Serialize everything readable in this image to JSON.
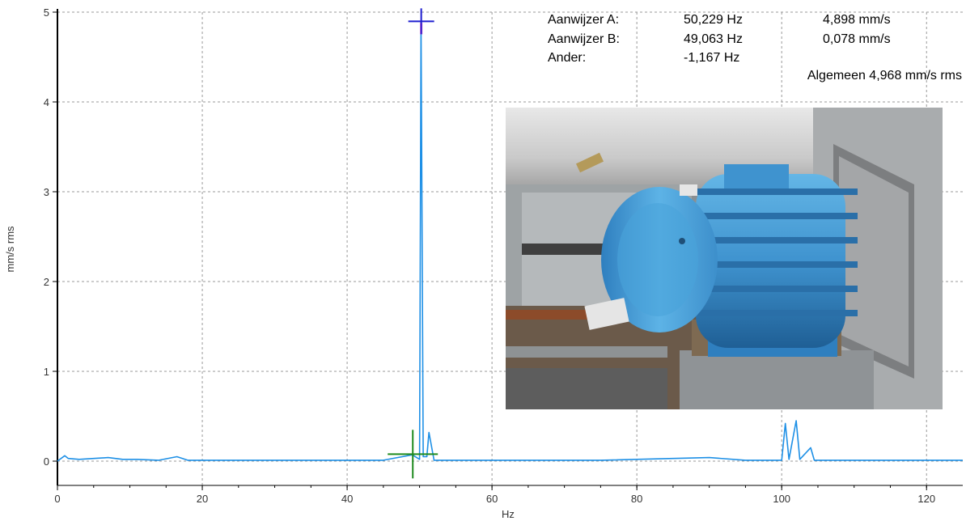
{
  "colors": {
    "spectrum": "#1e90e6",
    "grid": "#9a9a9a",
    "axis": "#000000",
    "cursor_a": "#1f1fd0",
    "cursor_b": "#1e8a1e",
    "peak_highlight": "#ff66cc"
  },
  "cursors": {
    "a": {
      "label": "Aanwijzer A:",
      "freq": "50,229 Hz",
      "amp": "4,898 mm/s"
    },
    "b": {
      "label": "Aanwijzer B:",
      "freq": "49,063 Hz",
      "amp": "0,078 mm/s"
    },
    "delta": {
      "label": "Ander:",
      "freq": "-1,167 Hz"
    },
    "overall": "Algemeen 4,968 mm/s rms"
  },
  "photo": {
    "subject": "electric motor photo",
    "icon": "blue-electric-motor"
  },
  "chart_data": {
    "type": "line",
    "title": "",
    "xlabel": "Hz",
    "ylabel": "mm/s rms",
    "xlim": [
      0,
      125
    ],
    "ylim": [
      -0.3,
      5
    ],
    "x_ticks": [
      "0",
      "20",
      "40",
      "60",
      "80",
      "100",
      "120"
    ],
    "y_ticks": [
      "0",
      "1",
      "2",
      "3",
      "4",
      "5"
    ],
    "grid": true,
    "series": [
      {
        "x": [
          0,
          1,
          1.5,
          3,
          5,
          7,
          9,
          11,
          14,
          16.5,
          18,
          25,
          35,
          45,
          49,
          50,
          50.2,
          50.5,
          51,
          51.3,
          52,
          60,
          75,
          90,
          95,
          100,
          100.5,
          101,
          102,
          102.5,
          104,
          104.5,
          110,
          120,
          125
        ],
        "y": [
          0.0,
          0.06,
          0.03,
          0.02,
          0.03,
          0.04,
          0.02,
          0.02,
          0.01,
          0.05,
          0.01,
          0.01,
          0.01,
          0.01,
          0.07,
          0.02,
          4.9,
          0.05,
          0.05,
          0.32,
          0.01,
          0.01,
          0.01,
          0.04,
          0.01,
          0.01,
          0.42,
          0.02,
          0.45,
          0.02,
          0.15,
          0.01,
          0.01,
          0.01,
          0.01
        ]
      }
    ],
    "markers": [
      {
        "name": "Aanwijzer A",
        "x": 50.229,
        "y": 4.898
      },
      {
        "name": "Aanwijzer B",
        "x": 49.063,
        "y": 0.078
      }
    ]
  }
}
